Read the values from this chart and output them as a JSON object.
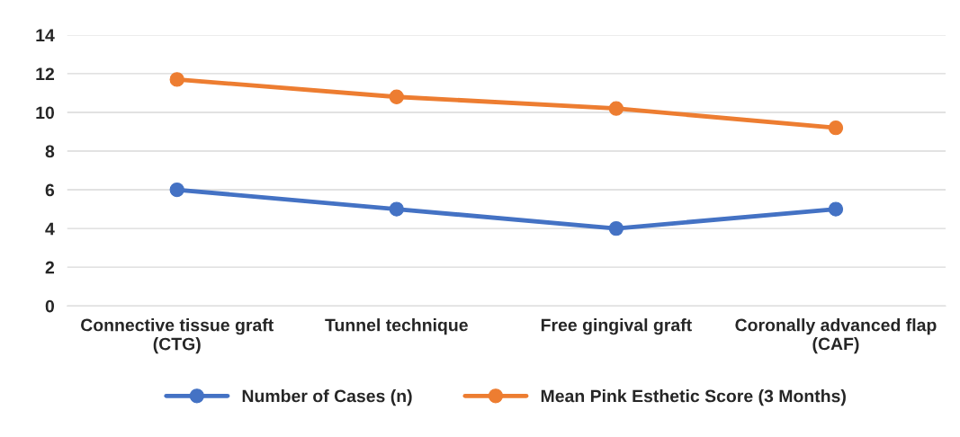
{
  "chart_data": {
    "type": "line",
    "categories": [
      "Connective tissue graft\n(CTG)",
      "Tunnel technique",
      "Free gingival graft",
      "Coronally advanced flap\n(CAF)"
    ],
    "series": [
      {
        "name": "Number of Cases (n)",
        "color": "#4472c4",
        "values": [
          6,
          5,
          4,
          5
        ]
      },
      {
        "name": "Mean Pink Esthetic Score (3 Months)",
        "color": "#ed7d31",
        "values": [
          11.7,
          10.8,
          10.2,
          9.2
        ]
      }
    ],
    "ylim": [
      0,
      14
    ],
    "yticks": [
      0,
      2,
      4,
      6,
      8,
      10,
      12,
      14
    ],
    "grid": "y",
    "legend": "bottom",
    "marker": "circle",
    "line_style": "solid"
  }
}
